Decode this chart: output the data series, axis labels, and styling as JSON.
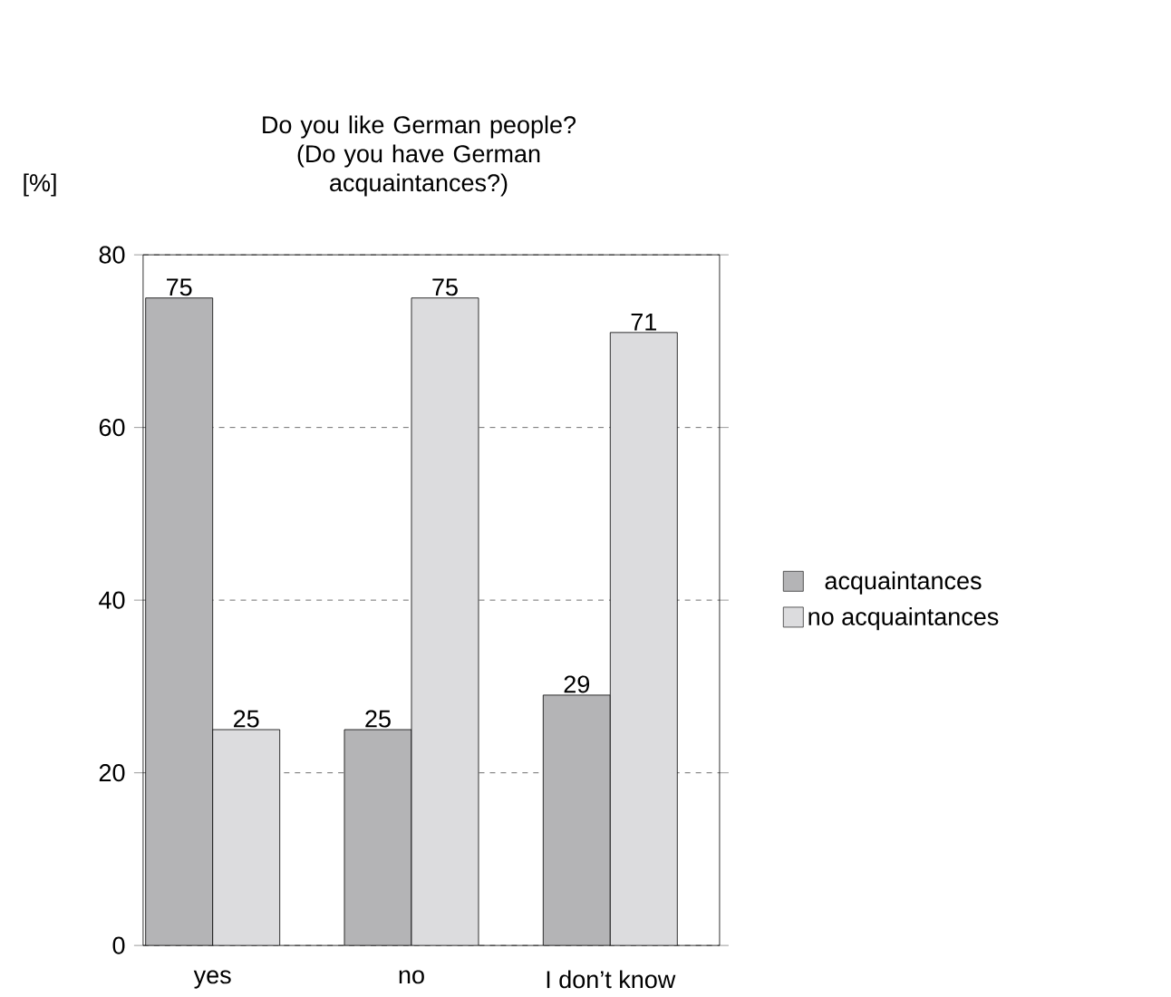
{
  "chart_data": {
    "type": "bar",
    "title": "Do you like German people?",
    "subtitle": "(Do you have German acquaintances?)",
    "ylabel": "[%]",
    "categories": [
      "yes",
      "no",
      "I don’t know"
    ],
    "series": [
      {
        "name": "acquaintances",
        "color": "#b4b4b6",
        "values": [
          75,
          25,
          29
        ]
      },
      {
        "name": "no acquaintances",
        "color": "#dcdcde",
        "values": [
          25,
          75,
          71
        ]
      }
    ],
    "ylim": [
      0,
      80
    ],
    "yticks": [
      0,
      20,
      40,
      60,
      80
    ],
    "grid": "y",
    "legend": "right",
    "data_labels": true
  }
}
